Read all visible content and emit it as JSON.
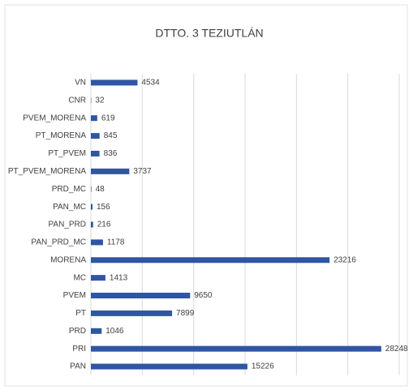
{
  "chart_data": {
    "type": "bar",
    "orientation": "horizontal",
    "title": "DTTO. 3 TEZIUTLÁN",
    "categories": [
      "VN",
      "CNR",
      "PVEM_MORENA",
      "PT_MORENA",
      "PT_PVEM",
      "PT_PVEM_MORENA",
      "PRD_MC",
      "PAN_MC",
      "PAN_PRD",
      "PAN_PRD_MC",
      "MORENA",
      "MC",
      "PVEM",
      "PT",
      "PRD",
      "PRI",
      "PAN"
    ],
    "values": [
      4534,
      32,
      619,
      845,
      836,
      3737,
      48,
      156,
      216,
      1178,
      23216,
      1413,
      9650,
      7899,
      1046,
      28248,
      15226
    ],
    "color": "#2f55a4",
    "xlim": [
      0,
      30000
    ],
    "xticks": [
      0,
      5000,
      10000,
      15000,
      20000,
      25000,
      30000
    ],
    "grid": true
  }
}
